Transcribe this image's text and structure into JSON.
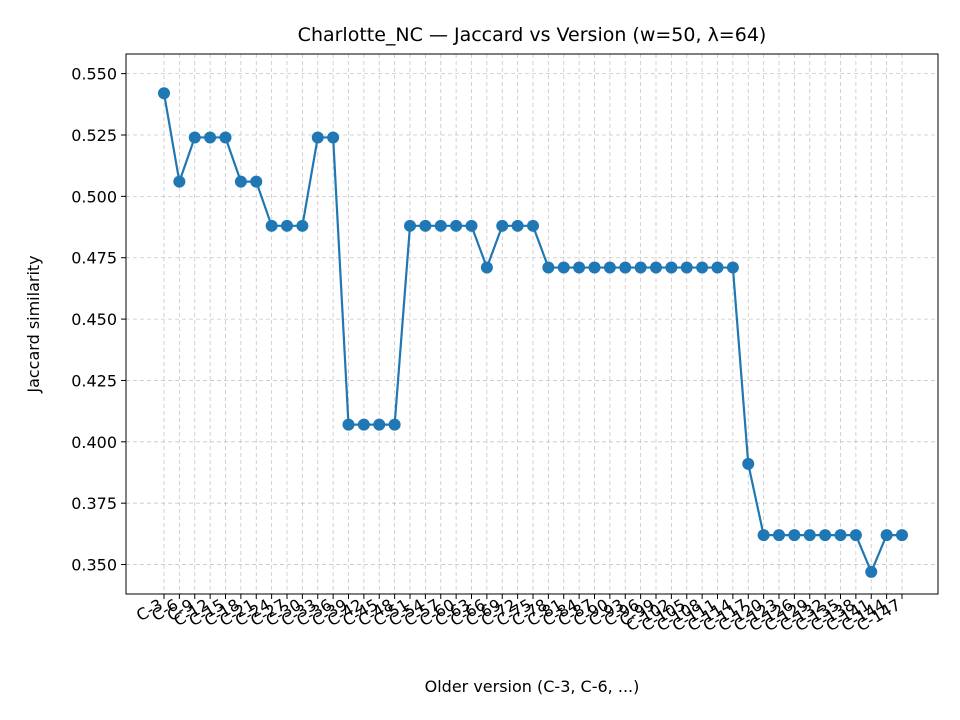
{
  "chart_data": {
    "type": "line",
    "title": "Charlotte_NC — Jaccard vs Version (w=50, λ=64)",
    "xlabel": "Older version (C-3, C-6, ...)",
    "ylabel": "Jaccard similarity",
    "ylim": [
      0.338,
      0.558
    ],
    "yticks": [
      "0.350",
      "0.375",
      "0.400",
      "0.425",
      "0.450",
      "0.475",
      "0.500",
      "0.525",
      "0.550"
    ],
    "grid": true,
    "color": "#1f77b4",
    "categories": [
      "C-3",
      "C-6",
      "C-9",
      "C-12",
      "C-15",
      "C-18",
      "C-21",
      "C-24",
      "C-27",
      "C-30",
      "C-33",
      "C-36",
      "C-39",
      "C-42",
      "C-45",
      "C-48",
      "C-51",
      "C-54",
      "C-57",
      "C-60",
      "C-63",
      "C-66",
      "C-69",
      "C-72",
      "C-75",
      "C-78",
      "C-81",
      "C-84",
      "C-87",
      "C-90",
      "C-93",
      "C-96",
      "C-99",
      "C-102",
      "C-105",
      "C-108",
      "C-111",
      "C-114",
      "C-117",
      "C-120",
      "C-123",
      "C-126",
      "C-129",
      "C-132",
      "C-135",
      "C-138",
      "C-141",
      "C-144",
      "C-147"
    ],
    "values": [
      0.542,
      0.506,
      0.524,
      0.524,
      0.524,
      0.506,
      0.506,
      0.488,
      0.488,
      0.488,
      0.524,
      0.524,
      0.407,
      0.407,
      0.407,
      0.407,
      0.488,
      0.488,
      0.488,
      0.488,
      0.488,
      0.471,
      0.488,
      0.488,
      0.488,
      0.471,
      0.471,
      0.471,
      0.471,
      0.471,
      0.471,
      0.471,
      0.471,
      0.471,
      0.471,
      0.471,
      0.471,
      0.471,
      0.391,
      0.362,
      0.362,
      0.362,
      0.362,
      0.362,
      0.362,
      0.362,
      0.347,
      0.362,
      0.362
    ]
  }
}
